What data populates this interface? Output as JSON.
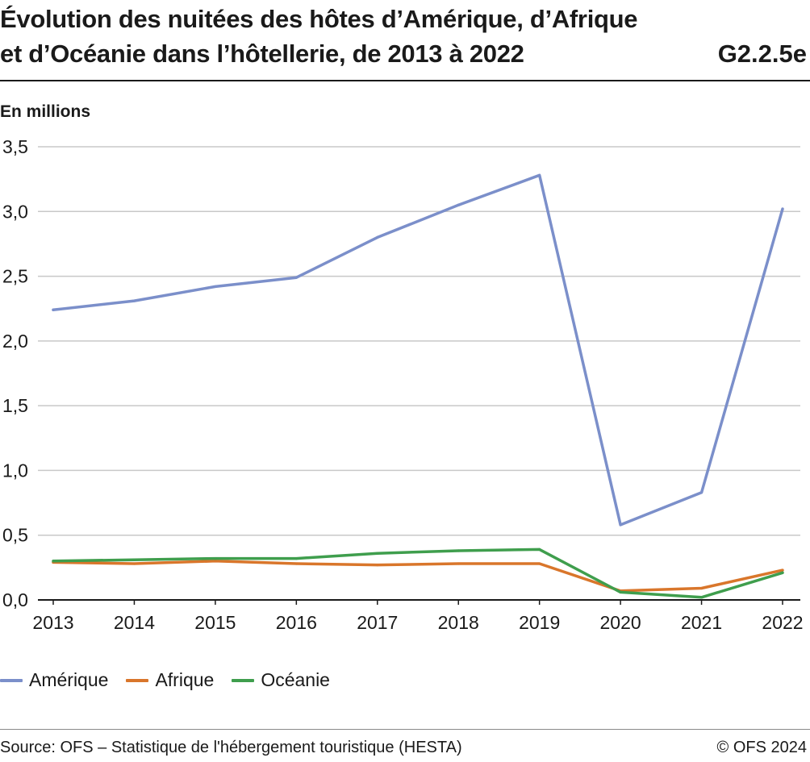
{
  "header": {
    "title_line1": "Évolution des nuitées des hôtes d’Amérique, d’Afrique",
    "title_line2": "et d’Océanie dans l’hôtellerie, de 2013 à 2022",
    "code": "G2.2.5e"
  },
  "chart_data": {
    "type": "line",
    "title": "Évolution des nuitées des hôtes d’Amérique, d’Afrique et d’Océanie dans l’hôtellerie, de 2013 à 2022",
    "ylabel": "En millions",
    "xlabel": "",
    "x": [
      "2013",
      "2014",
      "2015",
      "2016",
      "2017",
      "2018",
      "2019",
      "2020",
      "2021",
      "2022"
    ],
    "ylim": [
      0,
      3.5
    ],
    "yticks": [
      "0,0",
      "0,5",
      "1,0",
      "1,5",
      "2,0",
      "2,5",
      "3,0",
      "3,5"
    ],
    "grid": true,
    "legend_position": "bottom-left",
    "series": [
      {
        "name": "Amérique",
        "color": "#7b8fca",
        "values": [
          2.24,
          2.31,
          2.42,
          2.49,
          2.8,
          3.05,
          3.28,
          0.58,
          0.83,
          3.02
        ]
      },
      {
        "name": "Afrique",
        "color": "#d9762b",
        "values": [
          0.29,
          0.28,
          0.3,
          0.28,
          0.27,
          0.28,
          0.28,
          0.07,
          0.09,
          0.23
        ]
      },
      {
        "name": "Océanie",
        "color": "#3f9e4d",
        "values": [
          0.3,
          0.31,
          0.32,
          0.32,
          0.36,
          0.38,
          0.39,
          0.06,
          0.02,
          0.21
        ]
      }
    ]
  },
  "legend": {
    "items": [
      {
        "label": "Amérique",
        "color": "#7b8fca"
      },
      {
        "label": "Afrique",
        "color": "#d9762b"
      },
      {
        "label": "Océanie",
        "color": "#3f9e4d"
      }
    ]
  },
  "footer": {
    "source": "Source: OFS – Statistique de l'hébergement touristique (HESTA)",
    "copyright": "© OFS 2024"
  }
}
